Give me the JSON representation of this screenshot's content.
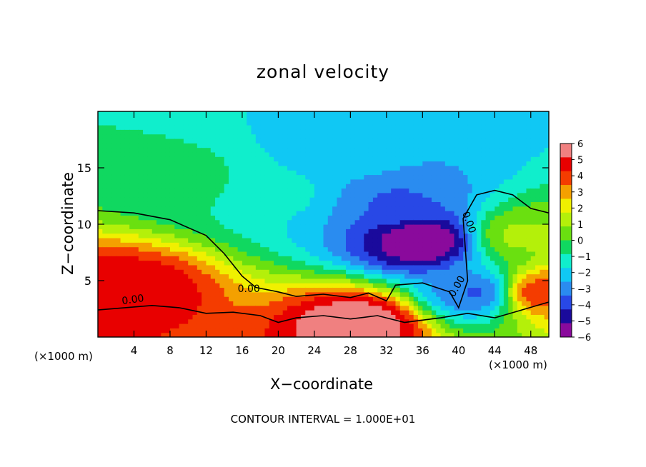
{
  "chart_data": {
    "type": "heatmap",
    "title": "zonal velocity",
    "xlabel": "X−coordinate",
    "ylabel": "Z−coordinate",
    "x_unit_label_left": "(×1000 m)",
    "x_unit_label_right": "(×1000 m)",
    "footnote": "CONTOUR INTERVAL = 1.000E+01",
    "xlim": [
      0,
      50
    ],
    "ylim": [
      0,
      20
    ],
    "x_ticks": [
      4,
      8,
      12,
      16,
      20,
      24,
      28,
      32,
      36,
      40,
      44,
      48
    ],
    "y_ticks": [
      5,
      10,
      15
    ],
    "colorbar": {
      "ticks": [
        6,
        5,
        4,
        3,
        2,
        1,
        0,
        -1,
        -2,
        -3,
        -4,
        -5,
        -6
      ],
      "tick_labels": [
        "6",
        "5",
        "4",
        "3",
        "2",
        "1",
        "0",
        "−1",
        "−2",
        "−3",
        "−4",
        "−5",
        "−6"
      ],
      "range": [
        -6,
        6
      ],
      "colors": [
        "#8a0a9c",
        "#1a0a9c",
        "#2848e6",
        "#2a8cf0",
        "#10c8f4",
        "#10eecc",
        "#10d860",
        "#6ae010",
        "#b4f00a",
        "#f0f000",
        "#f4a000",
        "#f43c00",
        "#e80000",
        "#f08080"
      ]
    },
    "contour_labels": [
      "0.00",
      "0.00",
      "0.00",
      "0.00"
    ],
    "features": [
      {
        "x": 36,
        "z": 8.5,
        "u": -6
      },
      {
        "x": 33,
        "z": 12,
        "u": -3.5
      },
      {
        "x": 30,
        "z": 16,
        "u": -2.5
      },
      {
        "x": 26,
        "z": 17,
        "u": -2
      },
      {
        "x": 20,
        "z": 13,
        "u": -1.5
      },
      {
        "x": 10,
        "z": 14,
        "u": -0.5
      },
      {
        "x": 3.5,
        "z": 4.2,
        "u": 5
      },
      {
        "x": 47,
        "z": 9,
        "u": 1
      },
      {
        "x": 42,
        "z": 4,
        "u": -3.5
      },
      {
        "x": 29,
        "z": 1.2,
        "u": 6
      },
      {
        "x": 49,
        "z": 4,
        "u": 4
      }
    ]
  }
}
